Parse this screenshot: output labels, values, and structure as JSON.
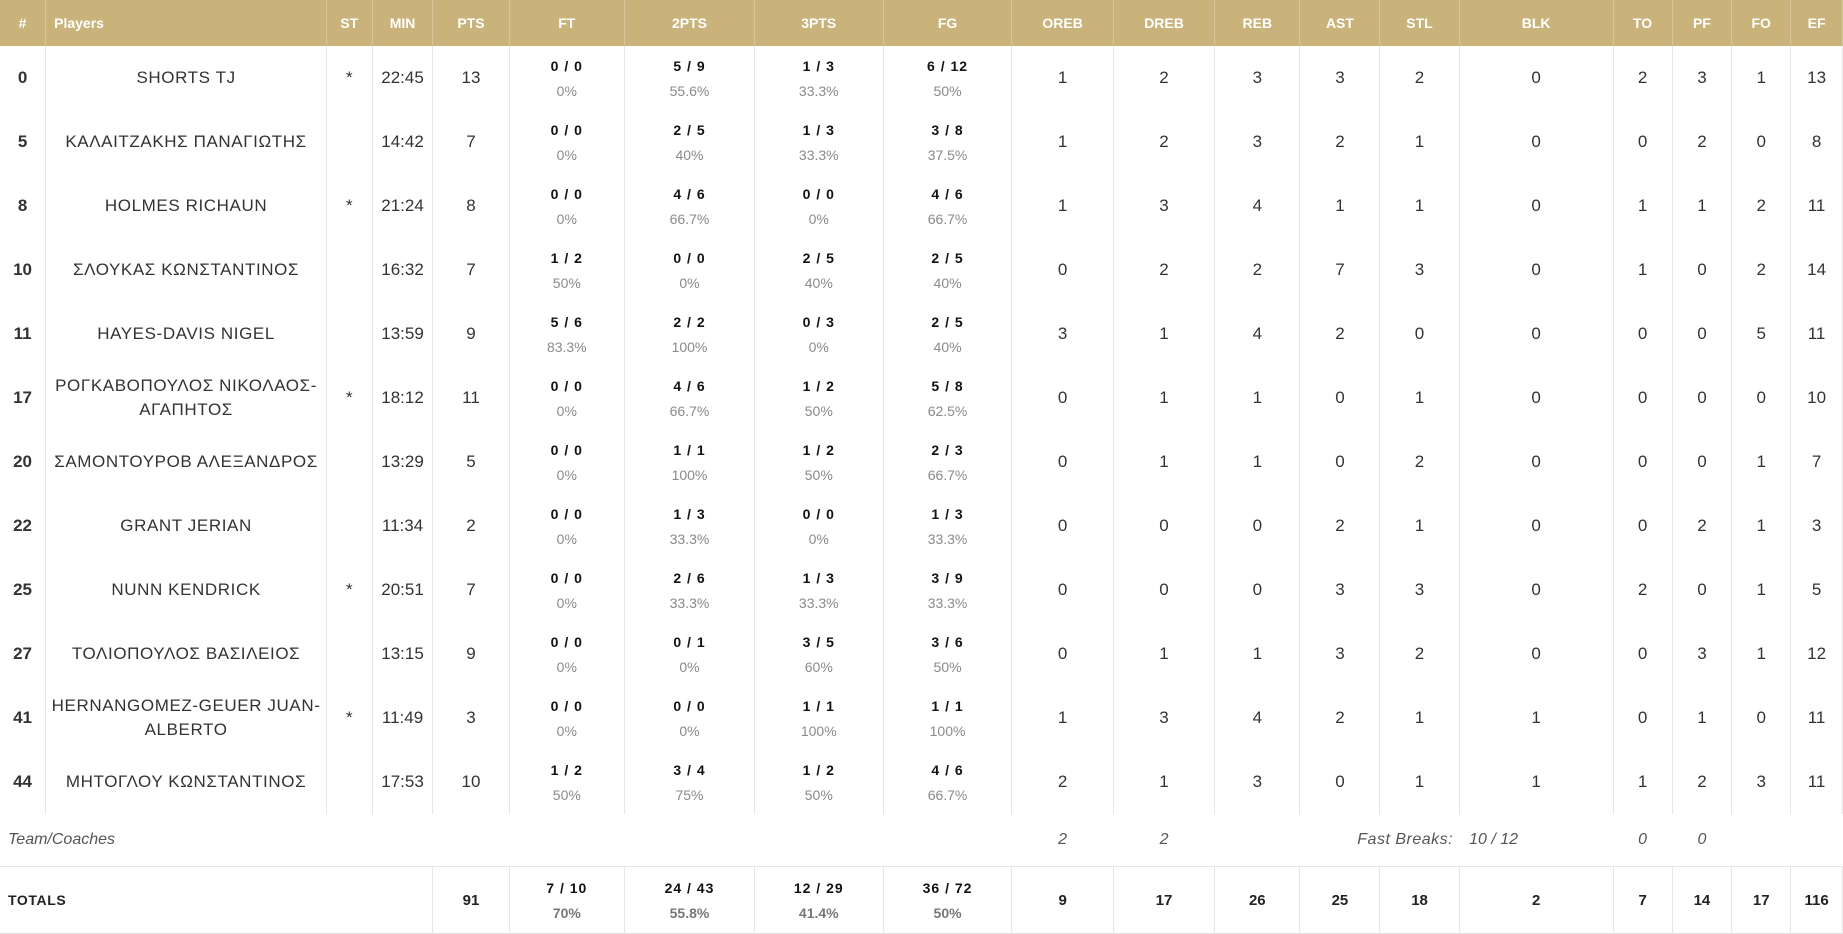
{
  "headers": {
    "num": "#",
    "players": "Players",
    "st": "ST",
    "min": "MIN",
    "pts": "PTS",
    "ft": "FT",
    "p2": "2PTS",
    "p3": "3PTS",
    "fg": "FG",
    "oreb": "OREB",
    "dreb": "DREB",
    "reb": "REB",
    "ast": "AST",
    "stl": "STL",
    "blk": "BLK",
    "to": "TO",
    "pf": "PF",
    "fo": "FO",
    "ef": "EF"
  },
  "players": [
    {
      "num": "0",
      "name": "SHORTS TJ",
      "st": "*",
      "min": "22:45",
      "pts": "13",
      "ft_made": "0 / 0",
      "ft_pct": "0%",
      "p2_made": "5 / 9",
      "p2_pct": "55.6%",
      "p3_made": "1 / 3",
      "p3_pct": "33.3%",
      "fg_made": "6 / 12",
      "fg_pct": "50%",
      "oreb": "1",
      "dreb": "2",
      "reb": "3",
      "ast": "3",
      "stl": "2",
      "blk": "0",
      "to": "2",
      "pf": "3",
      "fo": "1",
      "ef": "13"
    },
    {
      "num": "5",
      "name": "ΚΑΛΑΙΤΖΑΚΗΣ ΠΑΝΑΓΙΩΤΗΣ",
      "st": "",
      "min": "14:42",
      "pts": "7",
      "ft_made": "0 / 0",
      "ft_pct": "0%",
      "p2_made": "2 / 5",
      "p2_pct": "40%",
      "p3_made": "1 / 3",
      "p3_pct": "33.3%",
      "fg_made": "3 / 8",
      "fg_pct": "37.5%",
      "oreb": "1",
      "dreb": "2",
      "reb": "3",
      "ast": "2",
      "stl": "1",
      "blk": "0",
      "to": "0",
      "pf": "2",
      "fo": "0",
      "ef": "8"
    },
    {
      "num": "8",
      "name": "HOLMES RICHAUN",
      "st": "*",
      "min": "21:24",
      "pts": "8",
      "ft_made": "0 / 0",
      "ft_pct": "0%",
      "p2_made": "4 / 6",
      "p2_pct": "66.7%",
      "p3_made": "0 / 0",
      "p3_pct": "0%",
      "fg_made": "4 / 6",
      "fg_pct": "66.7%",
      "oreb": "1",
      "dreb": "3",
      "reb": "4",
      "ast": "1",
      "stl": "1",
      "blk": "0",
      "to": "1",
      "pf": "1",
      "fo": "2",
      "ef": "11"
    },
    {
      "num": "10",
      "name": "ΣΛΟΥΚΑΣ ΚΩΝΣΤΑΝΤΙΝΟΣ",
      "st": "",
      "min": "16:32",
      "pts": "7",
      "ft_made": "1 / 2",
      "ft_pct": "50%",
      "p2_made": "0 / 0",
      "p2_pct": "0%",
      "p3_made": "2 / 5",
      "p3_pct": "40%",
      "fg_made": "2 / 5",
      "fg_pct": "40%",
      "oreb": "0",
      "dreb": "2",
      "reb": "2",
      "ast": "7",
      "stl": "3",
      "blk": "0",
      "to": "1",
      "pf": "0",
      "fo": "2",
      "ef": "14"
    },
    {
      "num": "11",
      "name": "HAYES-DAVIS NIGEL",
      "st": "",
      "min": "13:59",
      "pts": "9",
      "ft_made": "5 / 6",
      "ft_pct": "83.3%",
      "p2_made": "2 / 2",
      "p2_pct": "100%",
      "p3_made": "0 / 3",
      "p3_pct": "0%",
      "fg_made": "2 / 5",
      "fg_pct": "40%",
      "oreb": "3",
      "dreb": "1",
      "reb": "4",
      "ast": "2",
      "stl": "0",
      "blk": "0",
      "to": "0",
      "pf": "0",
      "fo": "5",
      "ef": "11"
    },
    {
      "num": "17",
      "name": "ΡΟΓΚΑΒΟΠΟΥΛΟΣ ΝΙΚΟΛΑΟΣ-ΑΓΑΠΗΤΟΣ",
      "st": "*",
      "min": "18:12",
      "pts": "11",
      "ft_made": "0 / 0",
      "ft_pct": "0%",
      "p2_made": "4 / 6",
      "p2_pct": "66.7%",
      "p3_made": "1 / 2",
      "p3_pct": "50%",
      "fg_made": "5 / 8",
      "fg_pct": "62.5%",
      "oreb": "0",
      "dreb": "1",
      "reb": "1",
      "ast": "0",
      "stl": "1",
      "blk": "0",
      "to": "0",
      "pf": "0",
      "fo": "0",
      "ef": "10"
    },
    {
      "num": "20",
      "name": "ΣΑΜΟΝΤΟΥΡΟΒ ΑΛΕΞΑΝΔΡΟΣ",
      "st": "",
      "min": "13:29",
      "pts": "5",
      "ft_made": "0 / 0",
      "ft_pct": "0%",
      "p2_made": "1 / 1",
      "p2_pct": "100%",
      "p3_made": "1 / 2",
      "p3_pct": "50%",
      "fg_made": "2 / 3",
      "fg_pct": "66.7%",
      "oreb": "0",
      "dreb": "1",
      "reb": "1",
      "ast": "0",
      "stl": "2",
      "blk": "0",
      "to": "0",
      "pf": "0",
      "fo": "1",
      "ef": "7"
    },
    {
      "num": "22",
      "name": "GRANT JERIAN",
      "st": "",
      "min": "11:34",
      "pts": "2",
      "ft_made": "0 / 0",
      "ft_pct": "0%",
      "p2_made": "1 / 3",
      "p2_pct": "33.3%",
      "p3_made": "0 / 0",
      "p3_pct": "0%",
      "fg_made": "1 / 3",
      "fg_pct": "33.3%",
      "oreb": "0",
      "dreb": "0",
      "reb": "0",
      "ast": "2",
      "stl": "1",
      "blk": "0",
      "to": "0",
      "pf": "2",
      "fo": "1",
      "ef": "3"
    },
    {
      "num": "25",
      "name": "NUNN KENDRICK",
      "st": "*",
      "min": "20:51",
      "pts": "7",
      "ft_made": "0 / 0",
      "ft_pct": "0%",
      "p2_made": "2 / 6",
      "p2_pct": "33.3%",
      "p3_made": "1 / 3",
      "p3_pct": "33.3%",
      "fg_made": "3 / 9",
      "fg_pct": "33.3%",
      "oreb": "0",
      "dreb": "0",
      "reb": "0",
      "ast": "3",
      "stl": "3",
      "blk": "0",
      "to": "2",
      "pf": "0",
      "fo": "1",
      "ef": "5"
    },
    {
      "num": "27",
      "name": "ΤΟΛΙΟΠΟΥΛΟΣ ΒΑΣΙΛΕΙΟΣ",
      "st": "",
      "min": "13:15",
      "pts": "9",
      "ft_made": "0 / 0",
      "ft_pct": "0%",
      "p2_made": "0 / 1",
      "p2_pct": "0%",
      "p3_made": "3 / 5",
      "p3_pct": "60%",
      "fg_made": "3 / 6",
      "fg_pct": "50%",
      "oreb": "0",
      "dreb": "1",
      "reb": "1",
      "ast": "3",
      "stl": "2",
      "blk": "0",
      "to": "0",
      "pf": "3",
      "fo": "1",
      "ef": "12"
    },
    {
      "num": "41",
      "name": "HERNANGOMEZ-GEUER JUAN-ALBERTO",
      "st": "*",
      "min": "11:49",
      "pts": "3",
      "ft_made": "0 / 0",
      "ft_pct": "0%",
      "p2_made": "0 / 0",
      "p2_pct": "0%",
      "p3_made": "1 / 1",
      "p3_pct": "100%",
      "fg_made": "1 / 1",
      "fg_pct": "100%",
      "oreb": "1",
      "dreb": "3",
      "reb": "4",
      "ast": "2",
      "stl": "1",
      "blk": "1",
      "to": "0",
      "pf": "1",
      "fo": "0",
      "ef": "11"
    },
    {
      "num": "44",
      "name": "ΜΗΤΟΓΛΟΥ ΚΩΝΣΤΑΝΤΙΝΟΣ",
      "st": "",
      "min": "17:53",
      "pts": "10",
      "ft_made": "1 / 2",
      "ft_pct": "50%",
      "p2_made": "3 / 4",
      "p2_pct": "75%",
      "p3_made": "1 / 2",
      "p3_pct": "50%",
      "fg_made": "4 / 6",
      "fg_pct": "66.7%",
      "oreb": "2",
      "dreb": "1",
      "reb": "3",
      "ast": "0",
      "stl": "1",
      "blk": "1",
      "to": "1",
      "pf": "2",
      "fo": "3",
      "ef": "11"
    }
  ],
  "team": {
    "label": "Team/Coaches",
    "oreb": "2",
    "dreb": "2",
    "fast_breaks_label": "Fast Breaks:",
    "fast_breaks_value": "10 / 12",
    "to": "0",
    "pf": "0"
  },
  "totals": {
    "label": "TOTALS",
    "pts": "91",
    "ft_made": "7 / 10",
    "ft_pct": "70%",
    "p2_made": "24 / 43",
    "p2_pct": "55.8%",
    "p3_made": "12 / 29",
    "p3_pct": "41.4%",
    "fg_made": "36 / 72",
    "fg_pct": "50%",
    "oreb": "9",
    "dreb": "17",
    "reb": "26",
    "ast": "25",
    "stl": "18",
    "blk": "2",
    "to": "7",
    "pf": "14",
    "fo": "17",
    "ef": "116"
  },
  "colors": {
    "header_bg": "#c9b37a",
    "header_text": "#ffffff",
    "pct_text": "#8a8a8a"
  }
}
